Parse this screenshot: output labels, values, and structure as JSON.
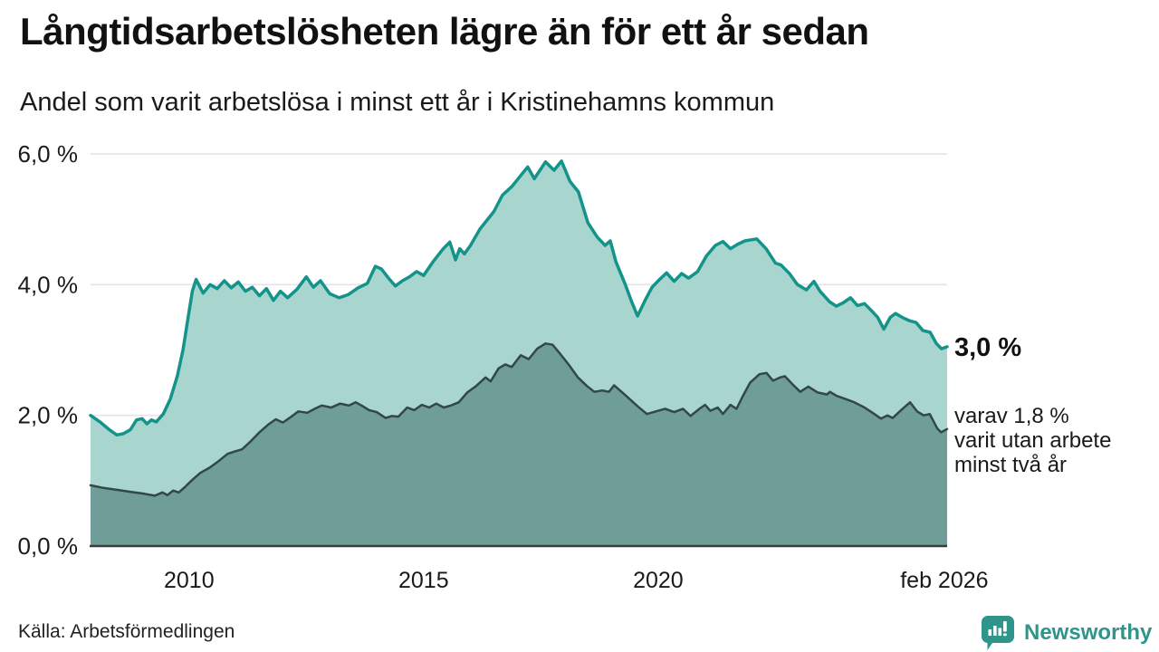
{
  "chart_data": {
    "type": "area",
    "title": "Långtidsarbetslösheten lägre än för ett år sedan",
    "subtitle": "Andel som varit arbetslösa i minst ett år i Kristinehamns kommun",
    "xlabel": "",
    "ylabel": "",
    "unit": "%",
    "x_domain": [
      2007.9,
      2026.16
    ],
    "y_domain": [
      0,
      6
    ],
    "grid": true,
    "legend_position": "direct-labels-right",
    "x_ticks": [
      {
        "value": 2010,
        "label": "2010"
      },
      {
        "value": 2015,
        "label": "2015"
      },
      {
        "value": 2020,
        "label": "2020"
      },
      {
        "value": 2026.1,
        "label": "feb 2026"
      }
    ],
    "y_ticks": [
      {
        "value": 0,
        "label": "0,0 %"
      },
      {
        "value": 2,
        "label": "2,0 %"
      },
      {
        "value": 4,
        "label": "4,0 %"
      },
      {
        "value": 6,
        "label": "6,0 %"
      }
    ],
    "colors": {
      "grid": "#e4e4e8",
      "axis": "#3b3b3b",
      "tick_text": "#1a1a1a"
    },
    "annotations": {
      "series1_end_label": "3,0 %",
      "series2_end_label_lines": [
        "varav 1,8 %",
        "varit utan arbete",
        "minst två år"
      ]
    },
    "series": [
      {
        "name": "Arbetslösa minst ett år",
        "line_color": "#14938a",
        "fill_color": "#a8d5cd",
        "line_width": 3.5,
        "end_value": "3,0 %",
        "points": [
          [
            2007.9,
            2.0
          ],
          [
            2008.1,
            1.9
          ],
          [
            2008.3,
            1.78
          ],
          [
            2008.46,
            1.7
          ],
          [
            2008.6,
            1.72
          ],
          [
            2008.75,
            1.78
          ],
          [
            2008.88,
            1.93
          ],
          [
            2009.0,
            1.95
          ],
          [
            2009.1,
            1.87
          ],
          [
            2009.2,
            1.93
          ],
          [
            2009.3,
            1.9
          ],
          [
            2009.45,
            2.02
          ],
          [
            2009.6,
            2.25
          ],
          [
            2009.75,
            2.6
          ],
          [
            2009.87,
            3.0
          ],
          [
            2009.97,
            3.45
          ],
          [
            2010.07,
            3.9
          ],
          [
            2010.15,
            4.08
          ],
          [
            2010.3,
            3.87
          ],
          [
            2010.45,
            4.0
          ],
          [
            2010.6,
            3.94
          ],
          [
            2010.75,
            4.06
          ],
          [
            2010.9,
            3.95
          ],
          [
            2011.05,
            4.04
          ],
          [
            2011.2,
            3.9
          ],
          [
            2011.35,
            3.96
          ],
          [
            2011.5,
            3.83
          ],
          [
            2011.65,
            3.94
          ],
          [
            2011.8,
            3.76
          ],
          [
            2011.95,
            3.9
          ],
          [
            2012.1,
            3.8
          ],
          [
            2012.3,
            3.93
          ],
          [
            2012.5,
            4.12
          ],
          [
            2012.65,
            3.96
          ],
          [
            2012.8,
            4.06
          ],
          [
            2013.0,
            3.86
          ],
          [
            2013.2,
            3.8
          ],
          [
            2013.4,
            3.85
          ],
          [
            2013.6,
            3.95
          ],
          [
            2013.8,
            4.02
          ],
          [
            2013.97,
            4.28
          ],
          [
            2014.1,
            4.24
          ],
          [
            2014.25,
            4.1
          ],
          [
            2014.4,
            3.98
          ],
          [
            2014.55,
            4.06
          ],
          [
            2014.7,
            4.12
          ],
          [
            2014.85,
            4.2
          ],
          [
            2015.0,
            4.14
          ],
          [
            2015.2,
            4.35
          ],
          [
            2015.42,
            4.55
          ],
          [
            2015.56,
            4.65
          ],
          [
            2015.68,
            4.38
          ],
          [
            2015.77,
            4.55
          ],
          [
            2015.87,
            4.47
          ],
          [
            2016.0,
            4.6
          ],
          [
            2016.2,
            4.85
          ],
          [
            2016.5,
            5.12
          ],
          [
            2016.68,
            5.37
          ],
          [
            2016.88,
            5.5
          ],
          [
            2017.07,
            5.67
          ],
          [
            2017.22,
            5.8
          ],
          [
            2017.36,
            5.62
          ],
          [
            2017.6,
            5.88
          ],
          [
            2017.78,
            5.75
          ],
          [
            2017.94,
            5.89
          ],
          [
            2018.12,
            5.58
          ],
          [
            2018.3,
            5.42
          ],
          [
            2018.5,
            4.95
          ],
          [
            2018.7,
            4.73
          ],
          [
            2018.87,
            4.6
          ],
          [
            2018.98,
            4.67
          ],
          [
            2019.1,
            4.35
          ],
          [
            2019.3,
            4.0
          ],
          [
            2019.43,
            3.75
          ],
          [
            2019.56,
            3.52
          ],
          [
            2019.72,
            3.76
          ],
          [
            2019.87,
            3.96
          ],
          [
            2020.03,
            4.08
          ],
          [
            2020.18,
            4.18
          ],
          [
            2020.34,
            4.05
          ],
          [
            2020.5,
            4.17
          ],
          [
            2020.65,
            4.1
          ],
          [
            2020.84,
            4.2
          ],
          [
            2021.03,
            4.44
          ],
          [
            2021.22,
            4.6
          ],
          [
            2021.38,
            4.66
          ],
          [
            2021.54,
            4.55
          ],
          [
            2021.7,
            4.62
          ],
          [
            2021.85,
            4.67
          ],
          [
            2022.1,
            4.7
          ],
          [
            2022.3,
            4.55
          ],
          [
            2022.5,
            4.33
          ],
          [
            2022.62,
            4.3
          ],
          [
            2022.8,
            4.17
          ],
          [
            2022.97,
            4.0
          ],
          [
            2023.16,
            3.92
          ],
          [
            2023.32,
            4.05
          ],
          [
            2023.45,
            3.9
          ],
          [
            2023.65,
            3.74
          ],
          [
            2023.8,
            3.67
          ],
          [
            2023.94,
            3.72
          ],
          [
            2024.1,
            3.8
          ],
          [
            2024.25,
            3.68
          ],
          [
            2024.4,
            3.71
          ],
          [
            2024.55,
            3.6
          ],
          [
            2024.68,
            3.5
          ],
          [
            2024.81,
            3.32
          ],
          [
            2024.95,
            3.5
          ],
          [
            2025.06,
            3.56
          ],
          [
            2025.2,
            3.5
          ],
          [
            2025.35,
            3.45
          ],
          [
            2025.5,
            3.42
          ],
          [
            2025.64,
            3.3
          ],
          [
            2025.8,
            3.27
          ],
          [
            2025.93,
            3.1
          ],
          [
            2026.04,
            3.02
          ],
          [
            2026.16,
            3.05
          ]
        ]
      },
      {
        "name": "Arbetslösa minst två år",
        "line_color": "#32474a",
        "fill_color": "#6f9d98",
        "line_width": 2.5,
        "end_value": "1,8 %",
        "points": [
          [
            2007.9,
            0.93
          ],
          [
            2008.17,
            0.89
          ],
          [
            2008.46,
            0.86
          ],
          [
            2008.75,
            0.83
          ],
          [
            2009.05,
            0.8
          ],
          [
            2009.27,
            0.77
          ],
          [
            2009.43,
            0.82
          ],
          [
            2009.54,
            0.78
          ],
          [
            2009.66,
            0.85
          ],
          [
            2009.78,
            0.82
          ],
          [
            2009.91,
            0.9
          ],
          [
            2010.05,
            1.0
          ],
          [
            2010.24,
            1.12
          ],
          [
            2010.44,
            1.2
          ],
          [
            2010.63,
            1.3
          ],
          [
            2010.82,
            1.41
          ],
          [
            2010.98,
            1.45
          ],
          [
            2011.13,
            1.48
          ],
          [
            2011.31,
            1.6
          ],
          [
            2011.5,
            1.74
          ],
          [
            2011.69,
            1.86
          ],
          [
            2011.85,
            1.94
          ],
          [
            2012.0,
            1.89
          ],
          [
            2012.18,
            1.98
          ],
          [
            2012.33,
            2.06
          ],
          [
            2012.52,
            2.04
          ],
          [
            2012.68,
            2.1
          ],
          [
            2012.83,
            2.15
          ],
          [
            2013.03,
            2.12
          ],
          [
            2013.22,
            2.18
          ],
          [
            2013.41,
            2.15
          ],
          [
            2013.55,
            2.2
          ],
          [
            2013.68,
            2.15
          ],
          [
            2013.84,
            2.08
          ],
          [
            2014.0,
            2.05
          ],
          [
            2014.19,
            1.96
          ],
          [
            2014.32,
            1.99
          ],
          [
            2014.46,
            1.98
          ],
          [
            2014.65,
            2.12
          ],
          [
            2014.8,
            2.08
          ],
          [
            2014.96,
            2.16
          ],
          [
            2015.12,
            2.12
          ],
          [
            2015.27,
            2.18
          ],
          [
            2015.43,
            2.12
          ],
          [
            2015.58,
            2.15
          ],
          [
            2015.75,
            2.2
          ],
          [
            2015.93,
            2.35
          ],
          [
            2016.12,
            2.45
          ],
          [
            2016.32,
            2.58
          ],
          [
            2016.43,
            2.52
          ],
          [
            2016.6,
            2.72
          ],
          [
            2016.74,
            2.78
          ],
          [
            2016.88,
            2.74
          ],
          [
            2017.07,
            2.92
          ],
          [
            2017.24,
            2.86
          ],
          [
            2017.42,
            3.02
          ],
          [
            2017.6,
            3.1
          ],
          [
            2017.75,
            3.08
          ],
          [
            2017.9,
            2.95
          ],
          [
            2018.09,
            2.78
          ],
          [
            2018.29,
            2.58
          ],
          [
            2018.48,
            2.45
          ],
          [
            2018.64,
            2.36
          ],
          [
            2018.81,
            2.38
          ],
          [
            2018.95,
            2.36
          ],
          [
            2019.06,
            2.46
          ],
          [
            2019.22,
            2.36
          ],
          [
            2019.39,
            2.25
          ],
          [
            2019.56,
            2.14
          ],
          [
            2019.76,
            2.02
          ],
          [
            2019.95,
            2.06
          ],
          [
            2020.15,
            2.1
          ],
          [
            2020.34,
            2.05
          ],
          [
            2020.53,
            2.1
          ],
          [
            2020.69,
            1.99
          ],
          [
            2020.88,
            2.1
          ],
          [
            2021.0,
            2.16
          ],
          [
            2021.11,
            2.07
          ],
          [
            2021.27,
            2.12
          ],
          [
            2021.38,
            2.02
          ],
          [
            2021.54,
            2.16
          ],
          [
            2021.67,
            2.1
          ],
          [
            2021.81,
            2.3
          ],
          [
            2021.96,
            2.5
          ],
          [
            2022.16,
            2.63
          ],
          [
            2022.31,
            2.65
          ],
          [
            2022.45,
            2.53
          ],
          [
            2022.6,
            2.58
          ],
          [
            2022.7,
            2.6
          ],
          [
            2022.9,
            2.45
          ],
          [
            2023.03,
            2.36
          ],
          [
            2023.2,
            2.44
          ],
          [
            2023.4,
            2.35
          ],
          [
            2023.6,
            2.32
          ],
          [
            2023.66,
            2.36
          ],
          [
            2023.8,
            2.3
          ],
          [
            2023.99,
            2.25
          ],
          [
            2024.18,
            2.2
          ],
          [
            2024.4,
            2.12
          ],
          [
            2024.57,
            2.04
          ],
          [
            2024.75,
            1.95
          ],
          [
            2024.89,
            2.0
          ],
          [
            2025.0,
            1.96
          ],
          [
            2025.21,
            2.1
          ],
          [
            2025.37,
            2.2
          ],
          [
            2025.52,
            2.06
          ],
          [
            2025.66,
            2.0
          ],
          [
            2025.79,
            2.02
          ],
          [
            2025.95,
            1.8
          ],
          [
            2026.03,
            1.74
          ],
          [
            2026.16,
            1.79
          ]
        ]
      }
    ]
  },
  "footer": {
    "source": "Källa: Arbetsförmedlingen",
    "brand": "Newsworthy",
    "brand_color": "#2f948a"
  }
}
